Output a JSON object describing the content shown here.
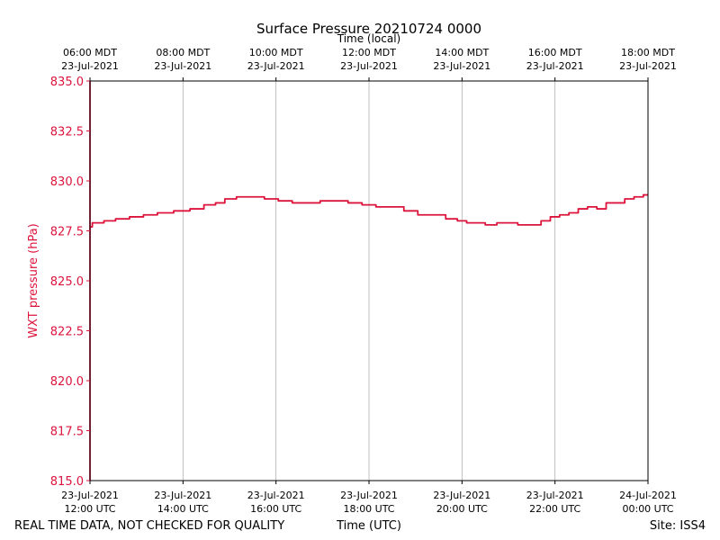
{
  "chart_data": {
    "type": "line",
    "title": "Surface Pressure 20210724 0000",
    "xlabel": "Time (UTC)",
    "x2label": "Time (local)",
    "ylabel": "WXT pressure (hPa)",
    "ylim": [
      815.0,
      835.0
    ],
    "xlim": [
      12.0,
      24.0
    ],
    "y_ticks": [
      {
        "value": 815.0,
        "label": "815.0"
      },
      {
        "value": 817.5,
        "label": "817.5"
      },
      {
        "value": 820.0,
        "label": "820.0"
      },
      {
        "value": 822.5,
        "label": "822.5"
      },
      {
        "value": 825.0,
        "label": "825.0"
      },
      {
        "value": 827.5,
        "label": "827.5"
      },
      {
        "value": 830.0,
        "label": "830.0"
      },
      {
        "value": 832.5,
        "label": "832.5"
      },
      {
        "value": 835.0,
        "label": "835.0"
      }
    ],
    "x_ticks_utc": [
      {
        "value": 12,
        "date": "23-Jul-2021",
        "time": "12:00 UTC"
      },
      {
        "value": 14,
        "date": "23-Jul-2021",
        "time": "14:00 UTC"
      },
      {
        "value": 16,
        "date": "23-Jul-2021",
        "time": "16:00 UTC"
      },
      {
        "value": 18,
        "date": "23-Jul-2021",
        "time": "18:00 UTC"
      },
      {
        "value": 20,
        "date": "23-Jul-2021",
        "time": "20:00 UTC"
      },
      {
        "value": 22,
        "date": "23-Jul-2021",
        "time": "22:00 UTC"
      },
      {
        "value": 24,
        "date": "24-Jul-2021",
        "time": "00:00 UTC"
      }
    ],
    "x_ticks_local": [
      {
        "value": 12,
        "time": "06:00 MDT",
        "date": "23-Jul-2021"
      },
      {
        "value": 14,
        "time": "08:00 MDT",
        "date": "23-Jul-2021"
      },
      {
        "value": 16,
        "time": "10:00 MDT",
        "date": "23-Jul-2021"
      },
      {
        "value": 18,
        "time": "12:00 MDT",
        "date": "23-Jul-2021"
      },
      {
        "value": 20,
        "time": "14:00 MDT",
        "date": "23-Jul-2021"
      },
      {
        "value": 22,
        "time": "16:00 MDT",
        "date": "23-Jul-2021"
      },
      {
        "value": 24,
        "time": "18:00 MDT",
        "date": "23-Jul-2021"
      }
    ],
    "grid": "vertical",
    "series": [
      {
        "name": "WXT pressure",
        "color": "#dc143c",
        "initial_drop": [
          835.0,
          815.0,
          827.7
        ],
        "x": [
          12.0,
          12.1,
          12.2,
          12.4,
          12.7,
          13.0,
          13.3,
          13.6,
          14.0,
          14.3,
          14.6,
          14.8,
          15.0,
          15.3,
          15.6,
          15.9,
          16.2,
          16.5,
          16.8,
          17.1,
          17.4,
          17.7,
          18.0,
          18.3,
          18.6,
          18.9,
          19.2,
          19.5,
          19.8,
          20.0,
          20.2,
          20.4,
          20.6,
          20.9,
          21.1,
          21.3,
          21.6,
          21.8,
          22.0,
          22.2,
          22.4,
          22.6,
          22.8,
          23.0,
          23.2,
          23.4,
          23.6,
          23.8,
          24.0
        ],
        "y": [
          827.7,
          827.9,
          827.9,
          828.0,
          828.1,
          828.2,
          828.3,
          828.4,
          828.5,
          828.6,
          828.8,
          828.9,
          829.1,
          829.2,
          829.2,
          829.1,
          829.0,
          828.9,
          828.9,
          829.0,
          829.0,
          828.9,
          828.8,
          828.7,
          828.7,
          828.5,
          828.3,
          828.3,
          828.1,
          828.0,
          827.9,
          827.9,
          827.8,
          827.9,
          827.9,
          827.8,
          827.8,
          828.0,
          828.2,
          828.3,
          828.4,
          828.6,
          828.7,
          828.6,
          828.9,
          828.9,
          829.1,
          829.2,
          829.3
        ]
      }
    ]
  },
  "footer": {
    "quality_note": "REAL TIME DATA, NOT CHECKED FOR QUALITY",
    "site": "Site: ISS4"
  }
}
